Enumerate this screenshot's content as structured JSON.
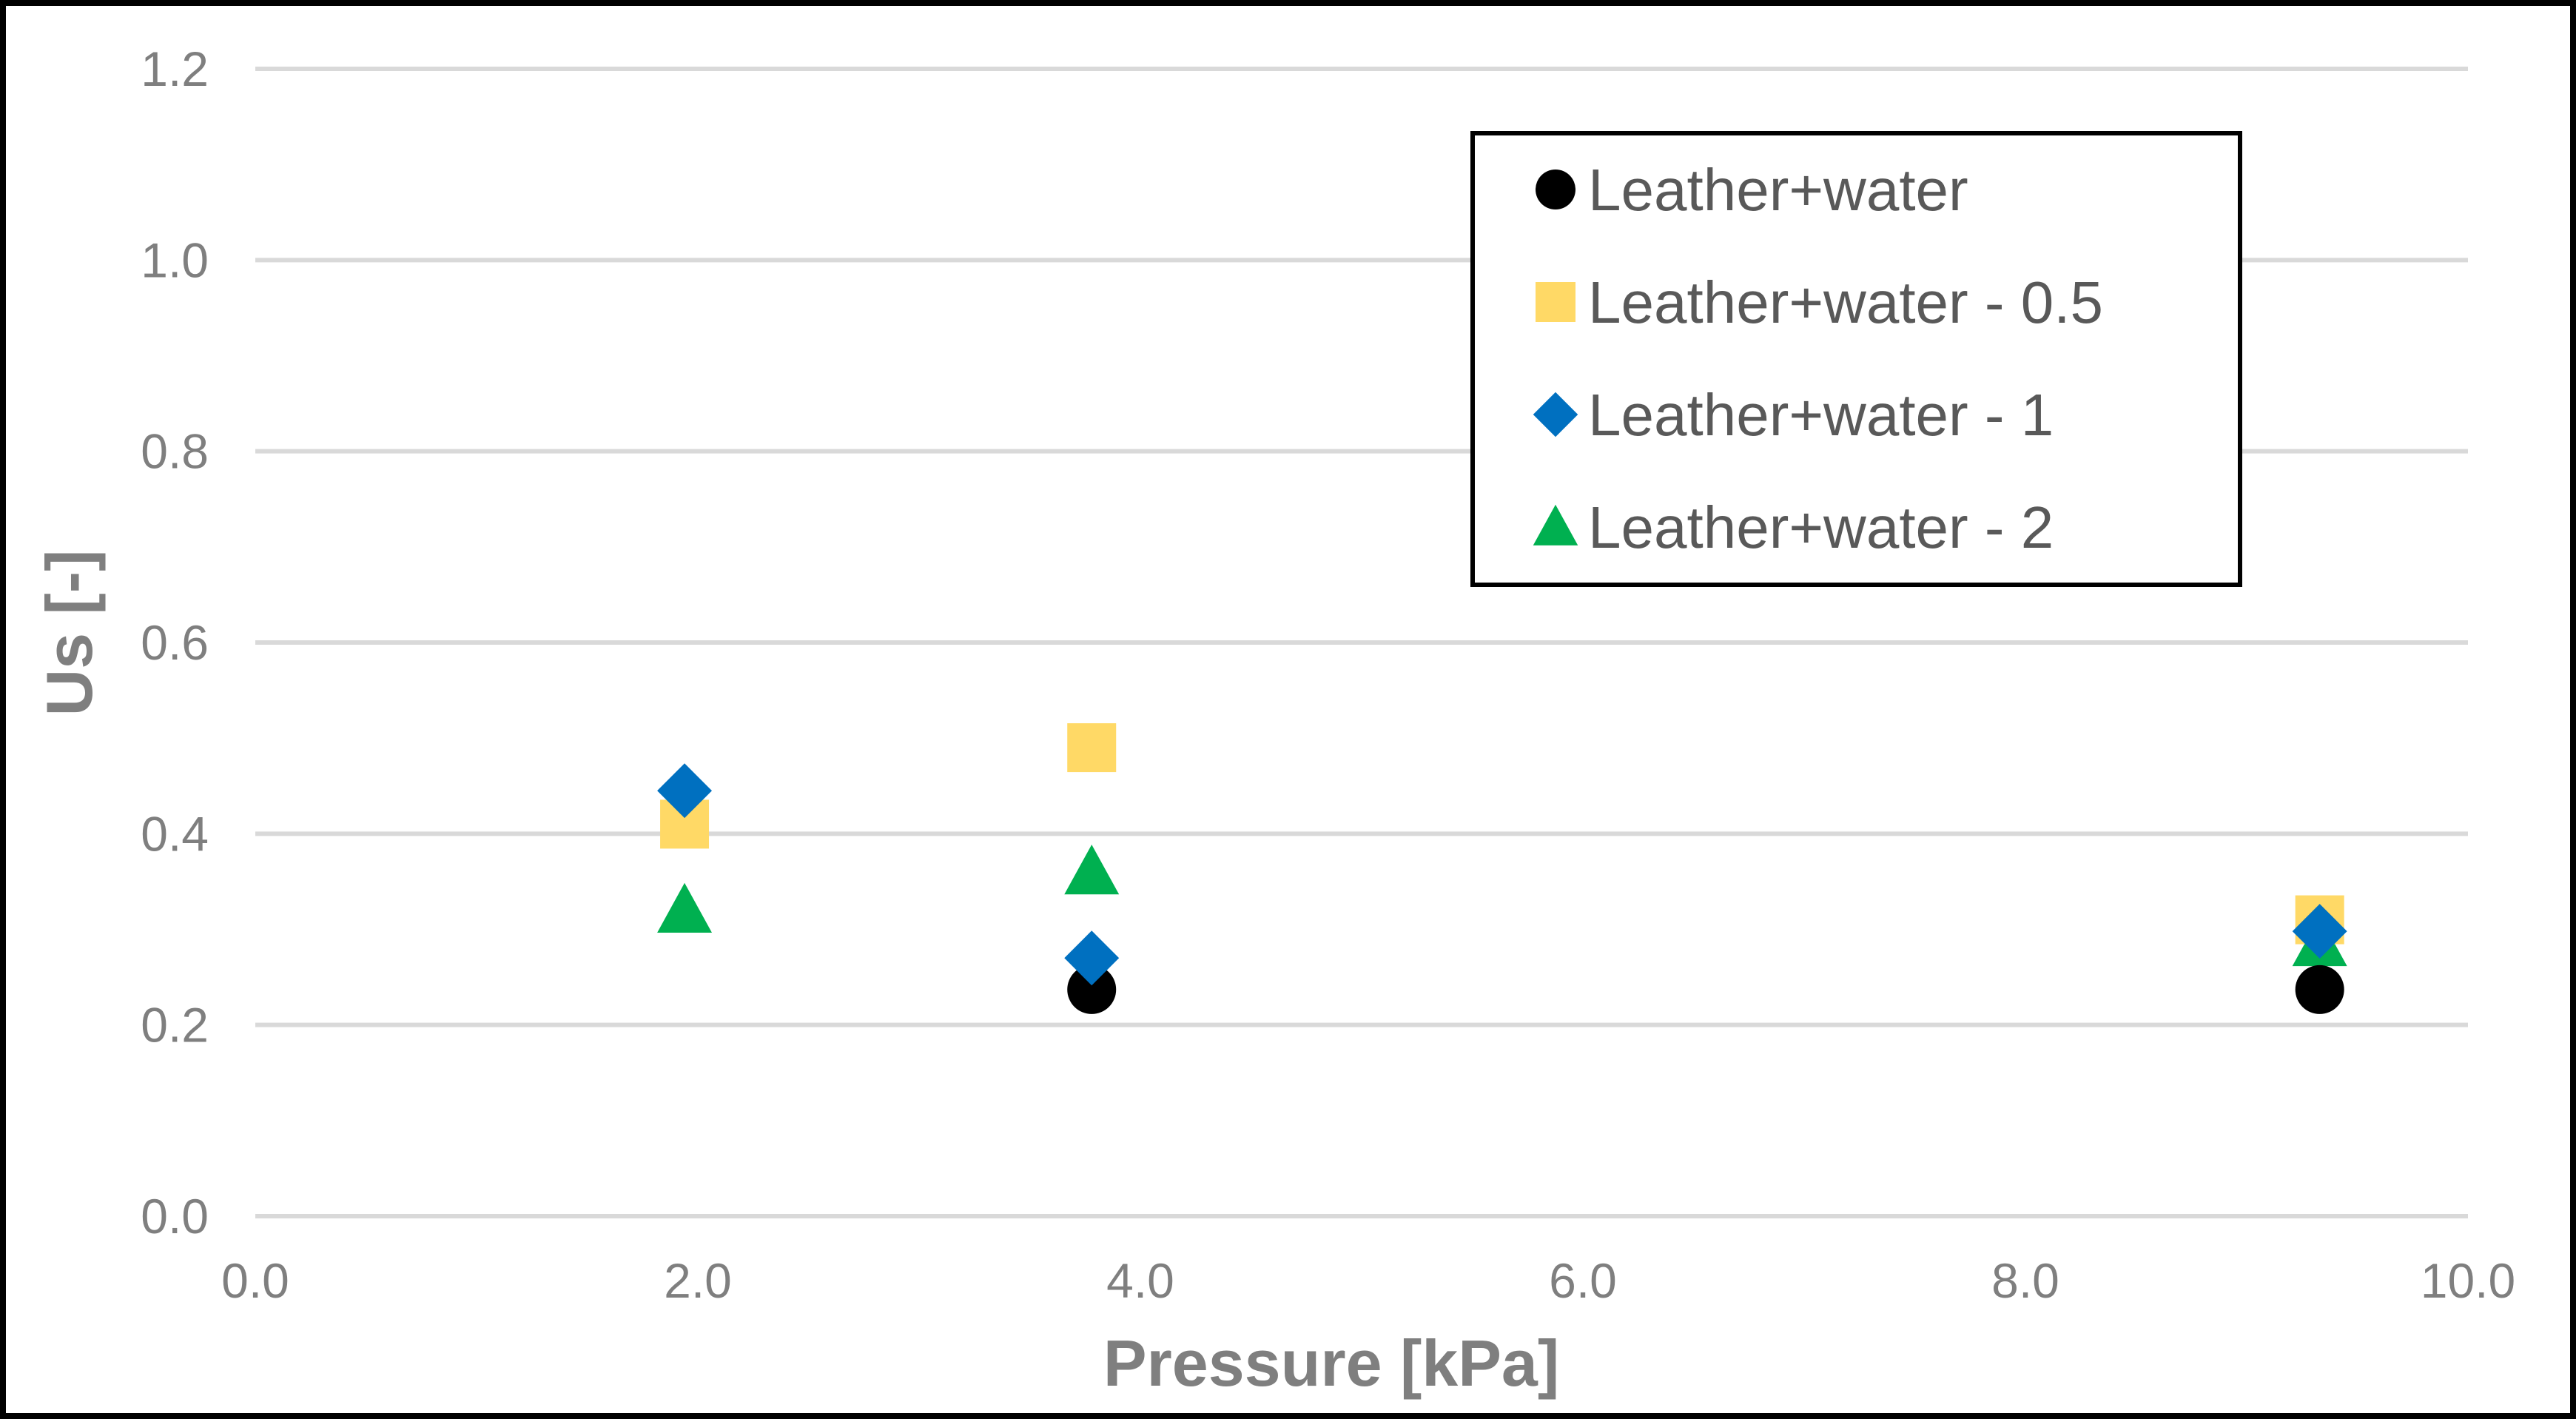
{
  "chart_data": {
    "type": "scatter",
    "title": "",
    "xlabel": "Pressure [kPa]",
    "ylabel": "Us  [-]",
    "xlim": [
      0,
      10
    ],
    "ylim": [
      0,
      1.2
    ],
    "x_ticks": [
      {
        "value": 0,
        "label": "0.0"
      },
      {
        "value": 2,
        "label": "2.0"
      },
      {
        "value": 4,
        "label": "4.0"
      },
      {
        "value": 6,
        "label": "6.0"
      },
      {
        "value": 8,
        "label": "8.0"
      },
      {
        "value": 10,
        "label": "10.0"
      }
    ],
    "y_ticks": [
      {
        "value": 0,
        "label": "0.0"
      },
      {
        "value": 0.2,
        "label": "0.2"
      },
      {
        "value": 0.4,
        "label": "0.4"
      },
      {
        "value": 0.6,
        "label": "0.6"
      },
      {
        "value": 0.8,
        "label": "0.8"
      },
      {
        "value": 1.0,
        "label": "1.0"
      },
      {
        "value": 1.2,
        "label": "1.2"
      }
    ],
    "grid": "horizontal",
    "legend_position": "top-right",
    "series": [
      {
        "name": "Leather+water - 2",
        "marker": "triangle",
        "color": "#00b050",
        "points": [
          {
            "x": 1.94,
            "y": 0.32
          },
          {
            "x": 3.78,
            "y": 0.36
          },
          {
            "x": 9.33,
            "y": 0.285
          }
        ]
      },
      {
        "name": "Leather+water",
        "marker": "circle",
        "color": "#000000",
        "points": [
          {
            "x": 3.78,
            "y": 0.237
          },
          {
            "x": 9.33,
            "y": 0.237
          }
        ]
      },
      {
        "name": "Leather+water - 0.5",
        "marker": "square",
        "color": "#ffd966",
        "points": [
          {
            "x": 1.94,
            "y": 0.41
          },
          {
            "x": 3.78,
            "y": 0.49
          },
          {
            "x": 9.33,
            "y": 0.31
          }
        ]
      },
      {
        "name": "Leather+water - 1",
        "marker": "diamond",
        "color": "#0070c0",
        "points": [
          {
            "x": 1.94,
            "y": 0.445
          },
          {
            "x": 3.78,
            "y": 0.27
          },
          {
            "x": 9.33,
            "y": 0.298
          }
        ]
      }
    ],
    "legend_order": [
      "Leather+water",
      "Leather+water - 0.5",
      "Leather+water - 1",
      "Leather+water - 2"
    ]
  }
}
